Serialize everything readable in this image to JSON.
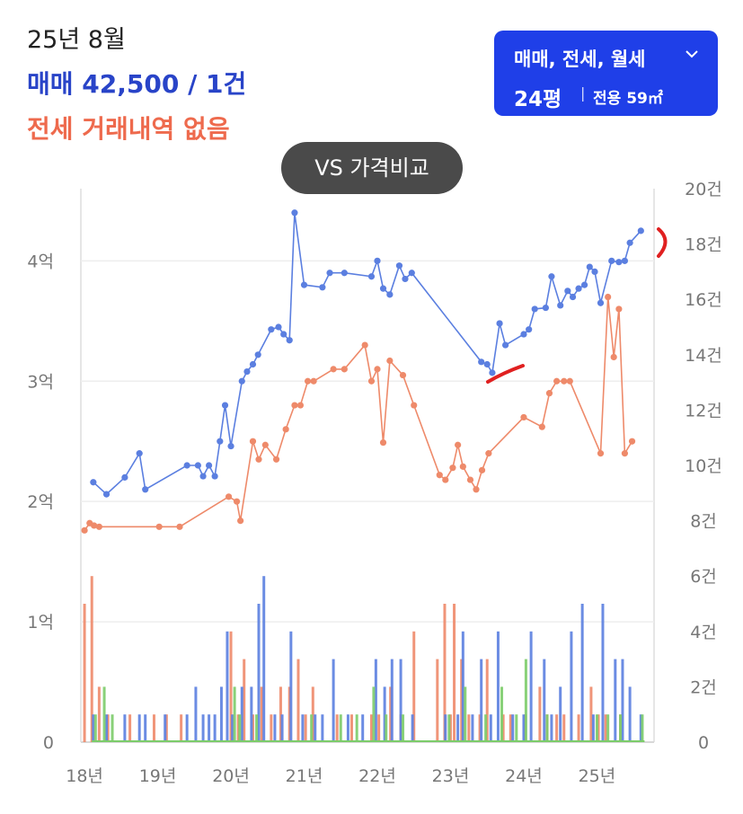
{
  "header": {
    "date": "25년 8월",
    "sale_summary": "매매 42,500 / 1건",
    "jeonse_summary": "전세 거래내역 없음"
  },
  "filter": {
    "types_label": "매매, 전세, 월세",
    "size_label": "24평",
    "area_label": "전용 59㎡"
  },
  "vs_button": {
    "label": "VS 가격비교"
  },
  "colors": {
    "sale": "#5b7fe0",
    "jeonse": "#ee8a6a",
    "wolse": "#7ccc6a",
    "grid": "#e6e6e6",
    "annotation": "#e02020"
  },
  "chart_data": {
    "type": "line",
    "x_ticks": [
      "18년",
      "19년",
      "20년",
      "21년",
      "22년",
      "23년",
      "24년",
      "25년"
    ],
    "x_tick_values": [
      2018,
      2019,
      2020,
      2021,
      2022,
      2023,
      2024,
      2025
    ],
    "xlim": [
      2017.95,
      2025.78
    ],
    "y_left_ticks": [
      "0",
      "1억",
      "2억",
      "3억",
      "4억"
    ],
    "y_left_values": [
      0,
      1,
      2,
      3,
      4
    ],
    "ylim_left": [
      0,
      4.6
    ],
    "y_right_ticks": [
      "0",
      "2건",
      "4건",
      "6건",
      "8건",
      "10건",
      "12건",
      "14건",
      "16건",
      "18건",
      "20건"
    ],
    "y_right_values": [
      0,
      2,
      4,
      6,
      8,
      10,
      12,
      14,
      16,
      18,
      20
    ],
    "ylim_right": [
      0,
      20
    ],
    "grid": true,
    "series": [
      {
        "type": "line",
        "points": [
          [
            2018.12,
            2.16
          ],
          [
            2018.3,
            2.06
          ],
          [
            2018.55,
            2.2
          ],
          [
            2018.75,
            2.4
          ],
          [
            2018.83,
            2.1
          ],
          [
            2019.4,
            2.3
          ],
          [
            2019.55,
            2.3
          ],
          [
            2019.62,
            2.21
          ],
          [
            2019.7,
            2.3
          ],
          [
            2019.78,
            2.21
          ],
          [
            2019.85,
            2.5
          ],
          [
            2019.92,
            2.8
          ],
          [
            2020.0,
            2.46
          ],
          [
            2020.15,
            3.0
          ],
          [
            2020.22,
            3.08
          ],
          [
            2020.3,
            3.14
          ],
          [
            2020.37,
            3.22
          ],
          [
            2020.55,
            3.43
          ],
          [
            2020.65,
            3.45
          ],
          [
            2020.72,
            3.39
          ],
          [
            2020.8,
            3.34
          ],
          [
            2020.87,
            4.4
          ],
          [
            2021.0,
            3.8
          ],
          [
            2021.25,
            3.78
          ],
          [
            2021.35,
            3.9
          ],
          [
            2021.55,
            3.9
          ],
          [
            2021.92,
            3.87
          ],
          [
            2022.0,
            4.0
          ],
          [
            2022.08,
            3.77
          ],
          [
            2022.17,
            3.72
          ],
          [
            2022.3,
            3.96
          ],
          [
            2022.38,
            3.85
          ],
          [
            2022.47,
            3.9
          ],
          [
            2023.42,
            3.16
          ],
          [
            2023.5,
            3.14
          ],
          [
            2023.57,
            3.07
          ],
          [
            2023.67,
            3.48
          ],
          [
            2023.75,
            3.3
          ],
          [
            2024.0,
            3.39
          ],
          [
            2024.07,
            3.43
          ],
          [
            2024.15,
            3.6
          ],
          [
            2024.3,
            3.61
          ],
          [
            2024.38,
            3.87
          ],
          [
            2024.5,
            3.63
          ],
          [
            2024.6,
            3.75
          ],
          [
            2024.67,
            3.7
          ],
          [
            2024.75,
            3.77
          ],
          [
            2024.83,
            3.8
          ],
          [
            2024.9,
            3.95
          ],
          [
            2024.97,
            3.91
          ],
          [
            2025.05,
            3.65
          ],
          [
            2025.2,
            4.0
          ],
          [
            2025.3,
            3.99
          ],
          [
            2025.38,
            4.0
          ],
          [
            2025.45,
            4.15
          ],
          [
            2025.6,
            4.25
          ]
        ]
      },
      {
        "type": "line",
        "points": [
          [
            2018.0,
            1.76
          ],
          [
            2018.07,
            1.82
          ],
          [
            2018.13,
            1.8
          ],
          [
            2018.2,
            1.79
          ],
          [
            2019.02,
            1.79
          ],
          [
            2019.3,
            1.79
          ],
          [
            2019.97,
            2.04
          ],
          [
            2020.08,
            2.0
          ],
          [
            2020.13,
            1.84
          ],
          [
            2020.3,
            2.5
          ],
          [
            2020.38,
            2.35
          ],
          [
            2020.47,
            2.47
          ],
          [
            2020.62,
            2.35
          ],
          [
            2020.75,
            2.6
          ],
          [
            2020.87,
            2.8
          ],
          [
            2020.95,
            2.8
          ],
          [
            2021.05,
            3.0
          ],
          [
            2021.13,
            3.0
          ],
          [
            2021.4,
            3.1
          ],
          [
            2021.55,
            3.1
          ],
          [
            2021.83,
            3.3
          ],
          [
            2021.92,
            3.0
          ],
          [
            2022.0,
            3.1
          ],
          [
            2022.08,
            2.49
          ],
          [
            2022.17,
            3.17
          ],
          [
            2022.35,
            3.05
          ],
          [
            2022.5,
            2.8
          ],
          [
            2022.85,
            2.22
          ],
          [
            2022.93,
            2.18
          ],
          [
            2023.03,
            2.28
          ],
          [
            2023.1,
            2.47
          ],
          [
            2023.17,
            2.29
          ],
          [
            2023.27,
            2.18
          ],
          [
            2023.35,
            2.1
          ],
          [
            2023.43,
            2.26
          ],
          [
            2023.52,
            2.4
          ],
          [
            2024.0,
            2.7
          ],
          [
            2024.25,
            2.62
          ],
          [
            2024.35,
            2.9
          ],
          [
            2024.45,
            3.0
          ],
          [
            2024.55,
            3.0
          ],
          [
            2024.63,
            3.0
          ],
          [
            2025.05,
            2.4
          ],
          [
            2025.15,
            3.7
          ],
          [
            2025.23,
            3.2
          ],
          [
            2025.3,
            3.6
          ],
          [
            2025.38,
            2.4
          ],
          [
            2025.48,
            2.5
          ]
        ]
      }
    ],
    "volume_bars": {
      "sale": [
        [
          2018.12,
          1
        ],
        [
          2018.3,
          1
        ],
        [
          2018.55,
          1
        ],
        [
          2018.75,
          1
        ],
        [
          2018.83,
          1
        ],
        [
          2019.1,
          1
        ],
        [
          2019.4,
          1
        ],
        [
          2019.52,
          2
        ],
        [
          2019.62,
          1
        ],
        [
          2019.7,
          1
        ],
        [
          2019.78,
          1
        ],
        [
          2019.87,
          2
        ],
        [
          2019.95,
          4
        ],
        [
          2020.02,
          1
        ],
        [
          2020.15,
          2
        ],
        [
          2020.28,
          2
        ],
        [
          2020.38,
          5
        ],
        [
          2020.45,
          6
        ],
        [
          2020.6,
          1
        ],
        [
          2020.7,
          1
        ],
        [
          2020.82,
          4
        ],
        [
          2020.98,
          1
        ],
        [
          2021.15,
          1
        ],
        [
          2021.25,
          1
        ],
        [
          2021.4,
          3
        ],
        [
          2021.6,
          1
        ],
        [
          2021.8,
          1
        ],
        [
          2021.98,
          3
        ],
        [
          2022.1,
          2
        ],
        [
          2022.2,
          3
        ],
        [
          2022.32,
          3
        ],
        [
          2022.48,
          1
        ],
        [
          2022.93,
          1
        ],
        [
          2023.1,
          1
        ],
        [
          2023.17,
          4
        ],
        [
          2023.3,
          1
        ],
        [
          2023.42,
          3
        ],
        [
          2023.55,
          1
        ],
        [
          2023.65,
          4
        ],
        [
          2023.85,
          1
        ],
        [
          2024.0,
          1
        ],
        [
          2024.1,
          4
        ],
        [
          2024.28,
          3
        ],
        [
          2024.38,
          1
        ],
        [
          2024.5,
          2
        ],
        [
          2024.65,
          4
        ],
        [
          2024.8,
          5
        ],
        [
          2024.95,
          1
        ],
        [
          2025.08,
          5
        ],
        [
          2025.25,
          3
        ],
        [
          2025.35,
          3
        ],
        [
          2025.45,
          2
        ],
        [
          2025.6,
          1
        ]
      ],
      "jeonse": [
        [
          2018.0,
          5
        ],
        [
          2018.1,
          6
        ],
        [
          2018.2,
          2
        ],
        [
          2018.32,
          1
        ],
        [
          2018.62,
          1
        ],
        [
          2018.95,
          1
        ],
        [
          2019.12,
          1
        ],
        [
          2019.32,
          1
        ],
        [
          2020.0,
          4
        ],
        [
          2020.1,
          1
        ],
        [
          2020.18,
          3
        ],
        [
          2020.3,
          1
        ],
        [
          2020.42,
          2
        ],
        [
          2020.55,
          1
        ],
        [
          2020.68,
          2
        ],
        [
          2020.8,
          2
        ],
        [
          2020.92,
          3
        ],
        [
          2021.02,
          1
        ],
        [
          2021.12,
          2
        ],
        [
          2021.45,
          1
        ],
        [
          2021.65,
          1
        ],
        [
          2021.92,
          1
        ],
        [
          2022.02,
          1
        ],
        [
          2022.18,
          2
        ],
        [
          2022.32,
          1
        ],
        [
          2022.5,
          4
        ],
        [
          2022.82,
          3
        ],
        [
          2022.92,
          5
        ],
        [
          2023.0,
          1
        ],
        [
          2023.05,
          5
        ],
        [
          2023.15,
          3
        ],
        [
          2023.25,
          1
        ],
        [
          2023.4,
          1
        ],
        [
          2023.5,
          3
        ],
        [
          2023.72,
          1
        ],
        [
          2023.82,
          1
        ],
        [
          2024.02,
          1
        ],
        [
          2024.22,
          2
        ],
        [
          2024.32,
          1
        ],
        [
          2024.45,
          1
        ],
        [
          2024.55,
          1
        ],
        [
          2024.75,
          1
        ],
        [
          2024.92,
          2
        ],
        [
          2025.02,
          1
        ],
        [
          2025.12,
          1
        ],
        [
          2025.32,
          1
        ]
      ],
      "wolse": [
        [
          2018.15,
          1
        ],
        [
          2018.27,
          2
        ],
        [
          2018.38,
          1
        ],
        [
          2020.05,
          2
        ],
        [
          2020.12,
          1
        ],
        [
          2020.35,
          1
        ],
        [
          2021.1,
          1
        ],
        [
          2021.5,
          1
        ],
        [
          2021.72,
          1
        ],
        [
          2021.95,
          2
        ],
        [
          2022.12,
          1
        ],
        [
          2022.35,
          1
        ],
        [
          2022.98,
          1
        ],
        [
          2023.2,
          2
        ],
        [
          2023.48,
          1
        ],
        [
          2023.7,
          2
        ],
        [
          2023.9,
          1
        ],
        [
          2024.03,
          3
        ],
        [
          2024.32,
          1
        ],
        [
          2025.0,
          1
        ],
        [
          2025.15,
          1
        ],
        [
          2025.32,
          1
        ],
        [
          2025.62,
          1
        ]
      ]
    },
    "annotations": [
      {
        "type": "red-mark",
        "near": [
          2023.78,
          3.1
        ]
      },
      {
        "type": "red-mark",
        "near": [
          2025.72,
          4.17
        ]
      }
    ]
  }
}
